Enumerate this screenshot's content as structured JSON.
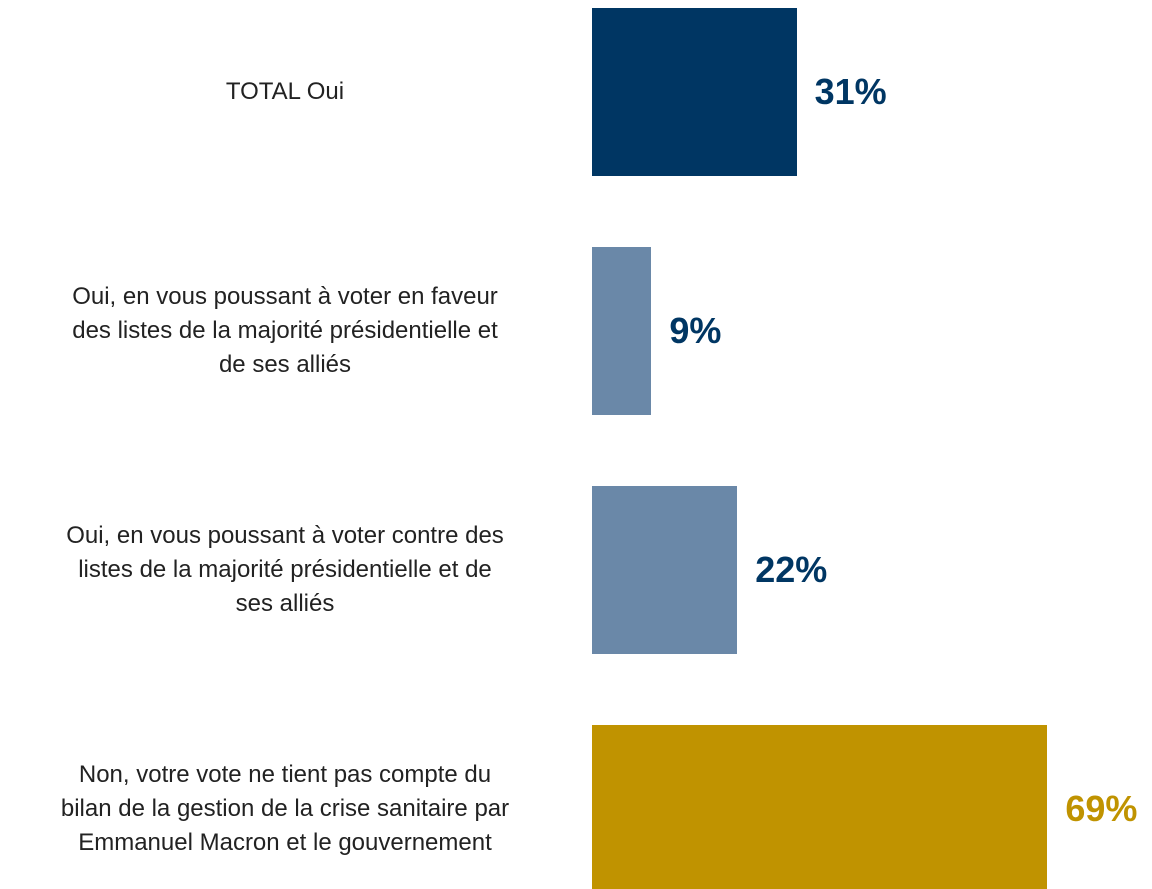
{
  "chart_data": {
    "type": "bar",
    "orientation": "horizontal",
    "categories": [
      "TOTAL Oui",
      "Oui, en vous poussant à voter en faveur\ndes listes de la majorité présidentielle et\nde ses alliés",
      "Oui, en vous poussant à voter contre des\nlistes de la majorité présidentielle et de\nses alliés",
      "Non, votre vote ne tient pas compte du\nbilan de la gestion de la crise sanitaire par\nEmmanuel Macron et le gouvernement"
    ],
    "values": [
      31,
      9,
      22,
      69
    ],
    "value_labels": [
      "31%",
      "9%",
      "22%",
      "69%"
    ],
    "colors": [
      "#003663",
      "#6a88a8",
      "#6a88a8",
      "#c09300"
    ],
    "label_colors": [
      "#003663",
      "#003663",
      "#003663",
      "#c09300"
    ]
  }
}
